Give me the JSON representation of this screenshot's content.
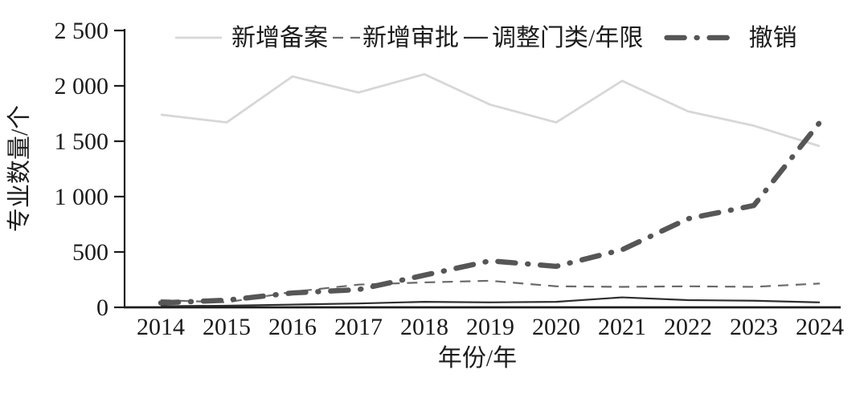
{
  "chart_data": {
    "type": "line",
    "title": "",
    "xlabel": "年份/年",
    "ylabel": "专业数量/个",
    "x": [
      2014,
      2015,
      2016,
      2017,
      2018,
      2019,
      2020,
      2021,
      2022,
      2023,
      2024
    ],
    "xtick_labels": [
      "2014",
      "2015",
      "2016",
      "2017",
      "2018",
      "2019",
      "2020",
      "2021",
      "2022",
      "2023",
      "2024"
    ],
    "ylim": [
      0,
      2500
    ],
    "yticks": [
      0,
      500,
      1000,
      1500,
      2000,
      2500
    ],
    "ytick_labels": [
      "0",
      "500",
      "1 000",
      "1 500",
      "2 000",
      "2 500"
    ],
    "grid": false,
    "legend_position": "top-inside",
    "axis_color": "#1c1c1c",
    "text_color": "#1c1c1c",
    "series": [
      {
        "name": "新增备案",
        "slug": "new-registration",
        "color": "#d7d7d7",
        "line_style": "solid",
        "thickness": "medium",
        "values": [
          1740,
          1670,
          2085,
          1940,
          2105,
          1830,
          1670,
          2045,
          1770,
          1640,
          1455
        ]
      },
      {
        "name": "新增审批",
        "slug": "new-approval",
        "color": "#6a6a6a",
        "line_style": "dashed",
        "thickness": "thin",
        "values": [
          65,
          45,
          140,
          205,
          225,
          240,
          190,
          185,
          190,
          185,
          215
        ]
      },
      {
        "name": "调整门类/年限",
        "slug": "category-duration-adjustment",
        "color": "#2e2e2e",
        "line_style": "solid",
        "thickness": "thin",
        "values": [
          10,
          15,
          25,
          35,
          50,
          45,
          50,
          90,
          65,
          60,
          45
        ]
      },
      {
        "name": "撤销",
        "slug": "revocation",
        "color": "#565656",
        "line_style": "dashdot",
        "thickness": "thick",
        "values": [
          40,
          65,
          130,
          160,
          290,
          420,
          370,
          520,
          800,
          920,
          1670
        ]
      }
    ]
  }
}
